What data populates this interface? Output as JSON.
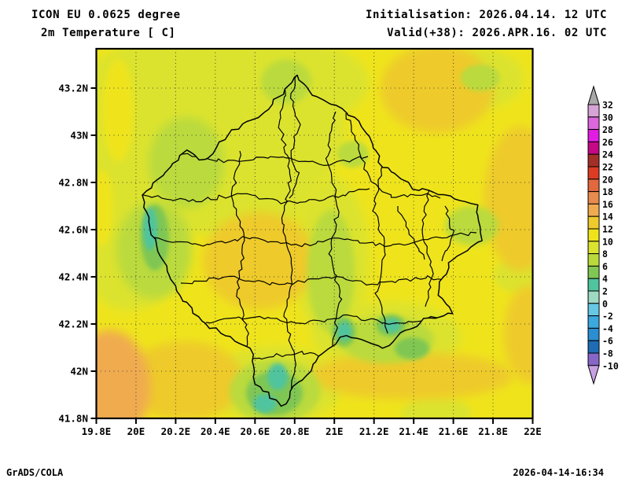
{
  "header": {
    "model_line": "ICON EU 0.0625 degree",
    "field_line": "2m Temperature [ C]",
    "init_line": "Initialisation: 2026.04.14. 12 UTC",
    "valid_line": "Valid(+38): 2026.APR.16. 02 UTC"
  },
  "footer": {
    "left": "GrADS/COLA",
    "right": "2026-04-14-16:34"
  },
  "map": {
    "x_axis": {
      "ticks": [
        {
          "label": "19.8E",
          "value": 19.8
        },
        {
          "label": "20E",
          "value": 20.0
        },
        {
          "label": "20.2E",
          "value": 20.2
        },
        {
          "label": "20.4E",
          "value": 20.4
        },
        {
          "label": "20.6E",
          "value": 20.6
        },
        {
          "label": "20.8E",
          "value": 20.8
        },
        {
          "label": "21E",
          "value": 21.0
        },
        {
          "label": "21.2E",
          "value": 21.2
        },
        {
          "label": "21.4E",
          "value": 21.4
        },
        {
          "label": "21.6E",
          "value": 21.6
        },
        {
          "label": "21.8E",
          "value": 21.8
        },
        {
          "label": "22E",
          "value": 22.0
        }
      ],
      "range": [
        19.8,
        22.0
      ]
    },
    "y_axis": {
      "ticks": [
        {
          "label": "43.2N",
          "value": 43.2
        },
        {
          "label": "43N",
          "value": 43.0
        },
        {
          "label": "42.8N",
          "value": 42.8
        },
        {
          "label": "42.6N",
          "value": 42.6
        },
        {
          "label": "42.4N",
          "value": 42.4
        },
        {
          "label": "42.2N",
          "value": 42.2
        },
        {
          "label": "42N",
          "value": 42.0
        },
        {
          "label": "41.8N",
          "value": 41.8
        }
      ],
      "range": [
        41.8,
        43.37
      ]
    },
    "palette": {
      "14-16": "#f0ab50",
      "12-14": "#eeca2c",
      "10-12": "#efe41c",
      "8-10": "#dce32f",
      "6-8": "#bada3c",
      "4-6": "#7fc653",
      "2-4": "#4fc49e"
    },
    "boundary_color": "#000000",
    "grid_color": "#444444"
  },
  "colorbar": {
    "boundary_labels": [
      "32",
      "30",
      "28",
      "26",
      "24",
      "22",
      "20",
      "18",
      "16",
      "14",
      "12",
      "10",
      "8",
      "6",
      "4",
      "2",
      "0",
      "-2",
      "-4",
      "-6",
      "-8",
      "-10"
    ],
    "segment_colors_top_to_bottom": [
      "#d6a3d6",
      "#dc66dc",
      "#e31ce3",
      "#c50886",
      "#a33028",
      "#dd3c24",
      "#e2683e",
      "#e88b4e",
      "#f0ab50",
      "#eeca2c",
      "#efe41c",
      "#dce32f",
      "#bada3c",
      "#7fc653",
      "#4fc49e",
      "#9ed9c2",
      "#66c8e4",
      "#3ba8de",
      "#2b8ed2",
      "#1e6cb4",
      "#8766c8"
    ],
    "above_max_color": "#a9a9a9",
    "below_min_color": "#c7a0e2"
  },
  "chart_data": {
    "type": "heatmap",
    "title": "2m Temperature [ C]",
    "model": "ICON EU 0.0625 degree",
    "x_axis_ticks": [
      "19.8E",
      "20E",
      "20.2E",
      "20.4E",
      "20.6E",
      "20.8E",
      "21E",
      "21.2E",
      "21.4E",
      "21.6E",
      "21.8E",
      "22E"
    ],
    "y_axis_ticks": [
      "41.8N",
      "42N",
      "42.2N",
      "42.4N",
      "42.6N",
      "42.8N",
      "43N",
      "43.2N"
    ],
    "lon_range": [
      19.8,
      22.0
    ],
    "lat_range": [
      41.8,
      43.37
    ],
    "colorbar_levels_celsius": [
      -10,
      -8,
      -6,
      -4,
      -2,
      0,
      2,
      4,
      6,
      8,
      10,
      12,
      14,
      16,
      18,
      20,
      22,
      24,
      26,
      28,
      30,
      32
    ],
    "grid": "dotted",
    "legend_position": "right",
    "overlay": "administrative boundary outlines",
    "field_summary": "Dominant 10-12 C (yellow) across domain; 8-10 and 6-8 C over northwest and central uplands; 4-6 and 2-4 C cold pockets west edge, south tip and southeast mountains; 12-14 C northeast, east edge and lowland south bands; 14-16 C southwest corner"
  }
}
